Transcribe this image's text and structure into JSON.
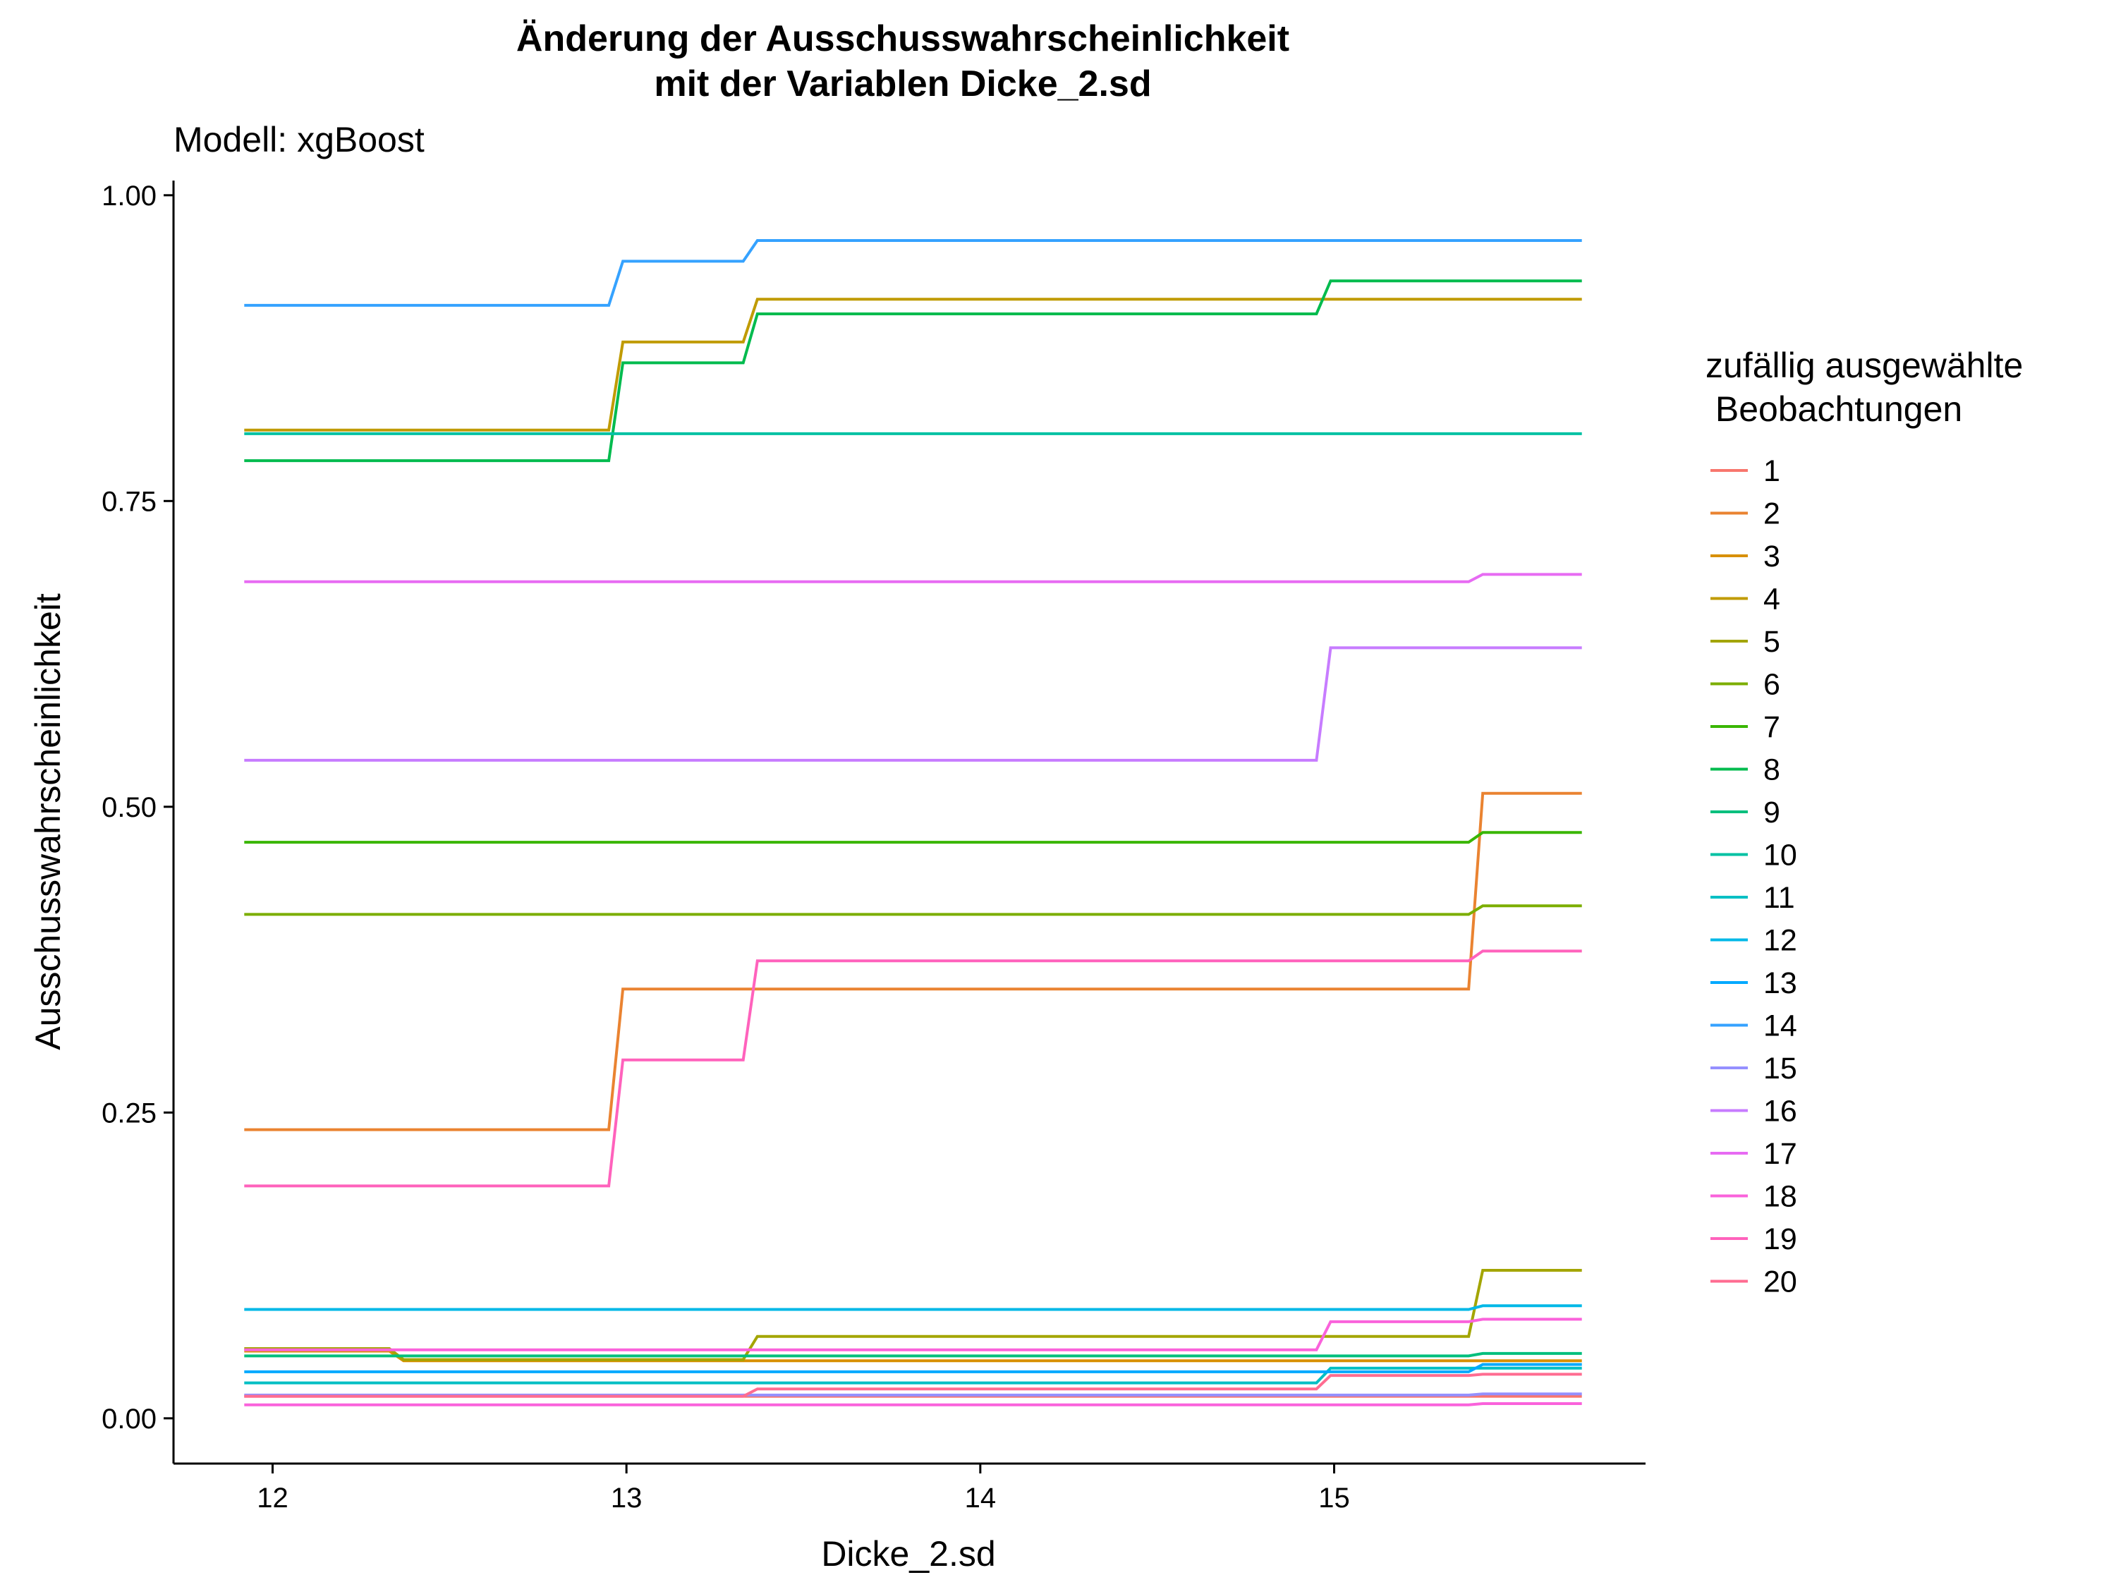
{
  "chart_data": {
    "type": "line",
    "title_lines": [
      "Änderung der Ausschusswahrscheinlichkeit",
      "mit der Variablen Dicke_2.sd"
    ],
    "subtitle": "Modell: xgBoost",
    "xlabel": "Dicke_2.sd",
    "ylabel": "Ausschusswahrscheinlichkeit",
    "xlim": [
      11.72,
      15.88
    ],
    "ylim": [
      -0.037,
      1.012
    ],
    "x_ticks": [
      12,
      13,
      14,
      15
    ],
    "x_tick_labels": [
      "12",
      "13",
      "14",
      "15"
    ],
    "y_ticks": [
      0,
      0.25,
      0.5,
      0.75,
      1.0
    ],
    "y_tick_labels": [
      "0.00",
      "0.25",
      "0.50",
      "0.75",
      "1.00"
    ],
    "grid": false,
    "legend_position": "right",
    "legend_title_lines": [
      "zufällig ausgewählte",
      " Beobachtungen"
    ],
    "series": [
      {
        "name": "1",
        "color": "#F8766D",
        "points": [
          [
            11.92,
            0.018
          ],
          [
            15.7,
            0.018
          ]
        ]
      },
      {
        "name": "2",
        "color": "#EA8331",
        "points": [
          [
            11.92,
            0.236
          ],
          [
            12.95,
            0.236
          ],
          [
            12.99,
            0.351
          ],
          [
            15.38,
            0.351
          ],
          [
            15.42,
            0.511
          ],
          [
            15.7,
            0.511
          ]
        ]
      },
      {
        "name": "3",
        "color": "#D89000",
        "points": [
          [
            11.92,
            0.055
          ],
          [
            12.33,
            0.055
          ],
          [
            12.37,
            0.047
          ],
          [
            15.7,
            0.047
          ]
        ]
      },
      {
        "name": "4",
        "color": "#C09B00",
        "points": [
          [
            11.92,
            0.808
          ],
          [
            12.95,
            0.808
          ],
          [
            12.99,
            0.88
          ],
          [
            13.33,
            0.88
          ],
          [
            13.37,
            0.915
          ],
          [
            15.7,
            0.915
          ]
        ]
      },
      {
        "name": "5",
        "color": "#A3A500",
        "points": [
          [
            11.92,
            0.057
          ],
          [
            12.33,
            0.057
          ],
          [
            12.37,
            0.048
          ],
          [
            13.33,
            0.048
          ],
          [
            13.37,
            0.067
          ],
          [
            15.38,
            0.067
          ],
          [
            15.42,
            0.121
          ],
          [
            15.7,
            0.121
          ]
        ]
      },
      {
        "name": "6",
        "color": "#7CAE00",
        "points": [
          [
            11.92,
            0.412
          ],
          [
            15.38,
            0.412
          ],
          [
            15.42,
            0.419
          ],
          [
            15.7,
            0.419
          ]
        ]
      },
      {
        "name": "7",
        "color": "#39B600",
        "points": [
          [
            11.92,
            0.471
          ],
          [
            15.38,
            0.471
          ],
          [
            15.42,
            0.479
          ],
          [
            15.7,
            0.479
          ]
        ]
      },
      {
        "name": "8",
        "color": "#00BB4E",
        "points": [
          [
            11.92,
            0.783
          ],
          [
            12.95,
            0.783
          ],
          [
            12.99,
            0.863
          ],
          [
            13.33,
            0.863
          ],
          [
            13.37,
            0.903
          ],
          [
            14.95,
            0.903
          ],
          [
            14.99,
            0.93
          ],
          [
            15.7,
            0.93
          ]
        ]
      },
      {
        "name": "9",
        "color": "#00BF7D",
        "points": [
          [
            11.92,
            0.051
          ],
          [
            15.38,
            0.051
          ],
          [
            15.42,
            0.053
          ],
          [
            15.7,
            0.053
          ]
        ]
      },
      {
        "name": "10",
        "color": "#00C1A3",
        "points": [
          [
            11.92,
            0.805
          ],
          [
            15.7,
            0.805
          ]
        ]
      },
      {
        "name": "11",
        "color": "#00BFC4",
        "points": [
          [
            11.92,
            0.029
          ],
          [
            14.95,
            0.029
          ],
          [
            14.99,
            0.041
          ],
          [
            15.7,
            0.041
          ]
        ]
      },
      {
        "name": "12",
        "color": "#00B8E7",
        "points": [
          [
            11.92,
            0.089
          ],
          [
            15.38,
            0.089
          ],
          [
            15.42,
            0.092
          ],
          [
            15.7,
            0.092
          ]
        ]
      },
      {
        "name": "13",
        "color": "#00A9FF",
        "points": [
          [
            11.92,
            0.038
          ],
          [
            15.38,
            0.038
          ],
          [
            15.42,
            0.044
          ],
          [
            15.7,
            0.044
          ]
        ]
      },
      {
        "name": "14",
        "color": "#35A2FF",
        "points": [
          [
            11.92,
            0.91
          ],
          [
            12.95,
            0.91
          ],
          [
            12.99,
            0.946
          ],
          [
            13.33,
            0.946
          ],
          [
            13.37,
            0.963
          ],
          [
            15.7,
            0.963
          ]
        ]
      },
      {
        "name": "15",
        "color": "#9590FF",
        "points": [
          [
            11.92,
            0.019
          ],
          [
            15.38,
            0.019
          ],
          [
            15.42,
            0.02
          ],
          [
            15.7,
            0.02
          ]
        ]
      },
      {
        "name": "16",
        "color": "#C77CFF",
        "points": [
          [
            11.92,
            0.538
          ],
          [
            14.95,
            0.538
          ],
          [
            14.99,
            0.63
          ],
          [
            15.7,
            0.63
          ]
        ]
      },
      {
        "name": "17",
        "color": "#E76BF3",
        "points": [
          [
            11.92,
            0.684
          ],
          [
            15.38,
            0.684
          ],
          [
            15.42,
            0.69
          ],
          [
            15.7,
            0.69
          ]
        ]
      },
      {
        "name": "18",
        "color": "#FA62DB",
        "points": [
          [
            11.92,
            0.011
          ],
          [
            15.38,
            0.011
          ],
          [
            15.42,
            0.012
          ],
          [
            15.7,
            0.012
          ]
        ]
      },
      {
        "name": "19",
        "color": "#FF62BC",
        "points": [
          [
            11.92,
            0.19
          ],
          [
            12.95,
            0.19
          ],
          [
            12.99,
            0.293
          ],
          [
            13.33,
            0.293
          ],
          [
            13.37,
            0.374
          ],
          [
            15.38,
            0.374
          ],
          [
            15.42,
            0.382
          ],
          [
            15.7,
            0.382
          ]
        ]
      },
      {
        "name": "20",
        "color": "#FF6C91",
        "points": [
          [
            11.92,
            0.018
          ],
          [
            13.33,
            0.018
          ],
          [
            13.37,
            0.024
          ],
          [
            14.95,
            0.024
          ],
          [
            14.99,
            0.035
          ],
          [
            15.38,
            0.035
          ],
          [
            15.42,
            0.036
          ],
          [
            15.7,
            0.036
          ]
        ]
      },
      {
        "name": "",
        "color": "#FA62DB",
        "points": [
          [
            11.92,
            0.056
          ],
          [
            14.95,
            0.056
          ],
          [
            14.99,
            0.079
          ],
          [
            15.38,
            0.079
          ],
          [
            15.42,
            0.081
          ],
          [
            15.7,
            0.081
          ]
        ]
      }
    ]
  }
}
